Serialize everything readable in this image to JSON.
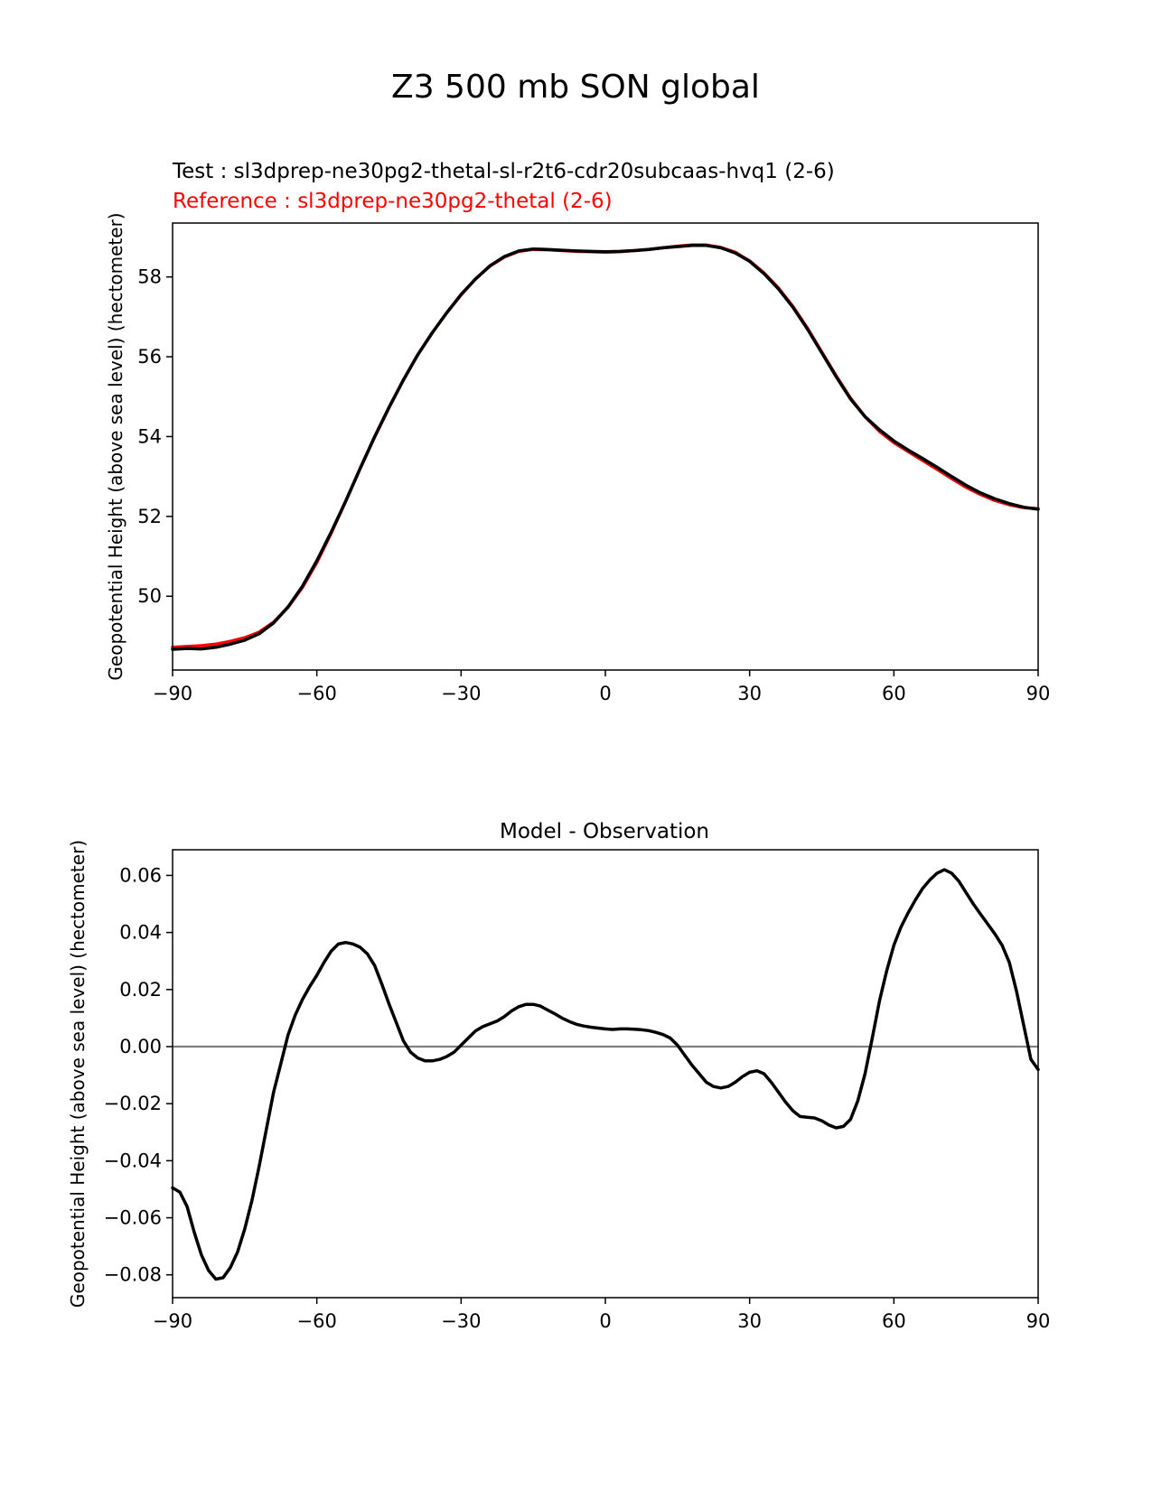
{
  "title": "Z3 500 mb SON global",
  "colors": {
    "test": "#000000",
    "reference": "#ff0000",
    "zero_line": "#808080"
  },
  "chart_data": [
    {
      "type": "line",
      "test_label": "Test : sl3dprep-ne30pg2-thetal-sl-r2t6-cdr20subcaas-hvq1 (2-6)",
      "reference_label": "Reference : sl3dprep-ne30pg2-thetal (2-6)",
      "ylabel": "Geopotential Height (above sea level) (hectometer)",
      "xlim": [
        -90,
        90
      ],
      "ylim": [
        48.15,
        59.35
      ],
      "xticks": [
        -90,
        -60,
        -30,
        0,
        30,
        60,
        90
      ],
      "xtick_labels": [
        "−90",
        "−60",
        "−30",
        "0",
        "30",
        "60",
        "90"
      ],
      "yticks": [
        50,
        52,
        54,
        56,
        58
      ],
      "ytick_labels": [
        "50",
        "52",
        "54",
        "56",
        "58"
      ],
      "series": [
        {
          "key": "reference",
          "color": "#ff0000",
          "x": [
            -90,
            -87,
            -84,
            -81,
            -78,
            -75,
            -72,
            -69,
            -66,
            -63,
            -60,
            -57,
            -54,
            -51,
            -48,
            -45,
            -42,
            -39,
            -36,
            -33,
            -30,
            -27,
            -24,
            -21,
            -18,
            -15,
            -12,
            -9,
            -6,
            -3,
            0,
            3,
            6,
            9,
            12,
            15,
            18,
            21,
            24,
            27,
            30,
            33,
            36,
            39,
            42,
            45,
            48,
            51,
            54,
            57,
            60,
            63,
            66,
            69,
            72,
            75,
            78,
            81,
            84,
            87,
            90
          ],
          "y": [
            48.72,
            48.74,
            48.76,
            48.8,
            48.87,
            48.96,
            49.1,
            49.35,
            49.72,
            50.22,
            50.85,
            51.58,
            52.38,
            53.2,
            53.98,
            54.72,
            55.42,
            56.05,
            56.6,
            57.1,
            57.55,
            57.95,
            58.27,
            58.5,
            58.64,
            58.69,
            58.68,
            58.66,
            58.64,
            58.63,
            58.62,
            58.63,
            58.66,
            58.69,
            58.73,
            58.77,
            58.8,
            58.8,
            58.74,
            58.62,
            58.4,
            58.1,
            57.72,
            57.26,
            56.72,
            56.12,
            55.52,
            54.96,
            54.5,
            54.13,
            53.85,
            53.62,
            53.4,
            53.18,
            52.95,
            52.73,
            52.55,
            52.4,
            52.29,
            52.22,
            52.19
          ]
        },
        {
          "key": "test",
          "color": "#000000",
          "x": [
            -90,
            -87,
            -84,
            -81,
            -78,
            -75,
            -72,
            -69,
            -66,
            -63,
            -60,
            -57,
            -54,
            -51,
            -48,
            -45,
            -42,
            -39,
            -36,
            -33,
            -30,
            -27,
            -24,
            -21,
            -18,
            -15,
            -12,
            -9,
            -6,
            -3,
            0,
            3,
            6,
            9,
            12,
            15,
            18,
            21,
            24,
            27,
            30,
            33,
            36,
            39,
            42,
            45,
            48,
            51,
            54,
            57,
            60,
            63,
            66,
            69,
            72,
            75,
            78,
            81,
            84,
            87,
            90
          ],
          "y": [
            48.67,
            48.69,
            48.68,
            48.72,
            48.8,
            48.9,
            49.06,
            49.33,
            49.73,
            50.25,
            50.89,
            51.61,
            52.38,
            53.2,
            53.99,
            54.73,
            55.42,
            56.05,
            56.6,
            57.1,
            57.56,
            57.95,
            58.28,
            58.51,
            58.65,
            58.7,
            58.69,
            58.67,
            58.65,
            58.64,
            58.63,
            58.64,
            58.66,
            58.69,
            58.73,
            58.76,
            58.79,
            58.79,
            58.73,
            58.6,
            58.39,
            58.08,
            57.7,
            57.24,
            56.7,
            56.1,
            55.5,
            54.94,
            54.5,
            54.17,
            53.89,
            53.66,
            53.45,
            53.23,
            53,
            52.78,
            52.59,
            52.44,
            52.32,
            52.23,
            52.18
          ]
        }
      ]
    },
    {
      "type": "line",
      "title": "Model - Observation",
      "ylabel": "Geopotential Height (above sea level) (hectometer)",
      "xlim": [
        -90,
        90
      ],
      "ylim": [
        -0.088,
        0.069
      ],
      "xticks": [
        -90,
        -60,
        -30,
        0,
        30,
        60,
        90
      ],
      "xtick_labels": [
        "−90",
        "−60",
        "−30",
        "0",
        "30",
        "60",
        "90"
      ],
      "yticks": [
        0.06,
        0.04,
        0.02,
        0.0,
        -0.02,
        -0.04,
        -0.06,
        -0.08
      ],
      "ytick_labels": [
        "0.06",
        "0.04",
        "0.02",
        "0.00",
        "−0.02",
        "−0.04",
        "−0.06",
        "−0.08"
      ],
      "zero_line": 0,
      "series": [
        {
          "key": "difference",
          "color": "#000000",
          "x": [
            -90,
            -88.5,
            -87,
            -85.5,
            -84,
            -82.5,
            -81,
            -79.5,
            -78,
            -76.5,
            -75,
            -73.5,
            -72,
            -70.5,
            -69,
            -67.5,
            -66,
            -64.5,
            -63,
            -61.5,
            -60,
            -58.5,
            -57,
            -55.5,
            -54,
            -52.5,
            -51,
            -49.5,
            -48,
            -46.5,
            -45,
            -43.5,
            -42,
            -40.5,
            -39,
            -37.5,
            -36,
            -34.5,
            -33,
            -31.5,
            -30,
            -28.5,
            -27,
            -25.5,
            -24,
            -22.5,
            -21,
            -19.5,
            -18,
            -16.5,
            -15,
            -13.5,
            -12,
            -10.5,
            -9,
            -7.5,
            -6,
            -4.5,
            -3,
            -1.5,
            0,
            1.5,
            3,
            4.5,
            6,
            7.5,
            9,
            10.5,
            12,
            13.5,
            15,
            16.5,
            18,
            19.5,
            21,
            22.5,
            24,
            25.5,
            27,
            28.5,
            30,
            31.5,
            33,
            34.5,
            36,
            37.5,
            39,
            40.5,
            42,
            43.5,
            45,
            46.5,
            48,
            49.5,
            51,
            52.5,
            54,
            55.5,
            57,
            58.5,
            60,
            61.5,
            63,
            64.5,
            66,
            67.5,
            69,
            70.5,
            72,
            73.5,
            75,
            76.5,
            78,
            79.5,
            81,
            82.5,
            84,
            85.5,
            87,
            88.5,
            90
          ],
          "y": [
            -0.0495,
            -0.051,
            -0.056,
            -0.065,
            -0.073,
            -0.0785,
            -0.0815,
            -0.081,
            -0.0775,
            -0.072,
            -0.064,
            -0.054,
            -0.042,
            -0.029,
            -0.016,
            -0.006,
            0.004,
            0.011,
            0.0165,
            0.021,
            0.025,
            0.0295,
            0.0335,
            0.036,
            0.0365,
            0.036,
            0.0348,
            0.0325,
            0.0285,
            0.022,
            0.015,
            0.0085,
            0.002,
            -0.002,
            -0.004,
            -0.005,
            -0.005,
            -0.0045,
            -0.0035,
            -0.002,
            0.0005,
            0.003,
            0.0055,
            0.007,
            0.008,
            0.009,
            0.0105,
            0.0125,
            0.014,
            0.0148,
            0.0148,
            0.0142,
            0.0128,
            0.0115,
            0.01,
            0.0088,
            0.0078,
            0.0072,
            0.0068,
            0.0065,
            0.0062,
            0.006,
            0.0062,
            0.0062,
            0.0061,
            0.0059,
            0.0056,
            0.005,
            0.0042,
            0.003,
            0.0005,
            -0.003,
            -0.0065,
            -0.0095,
            -0.0125,
            -0.014,
            -0.0145,
            -0.014,
            -0.0125,
            -0.0105,
            -0.009,
            -0.0085,
            -0.0095,
            -0.0125,
            -0.016,
            -0.0195,
            -0.0225,
            -0.0245,
            -0.0248,
            -0.025,
            -0.026,
            -0.0275,
            -0.0285,
            -0.028,
            -0.0255,
            -0.019,
            -0.0095,
            0.003,
            0.016,
            0.0265,
            0.0355,
            0.042,
            0.047,
            0.0515,
            0.0555,
            0.0585,
            0.0608,
            0.062,
            0.0608,
            0.058,
            0.054,
            0.05,
            0.0465,
            0.043,
            0.0395,
            0.0355,
            0.0295,
            0.0195,
            0.0075,
            -0.0045,
            -0.008
          ]
        }
      ]
    }
  ]
}
